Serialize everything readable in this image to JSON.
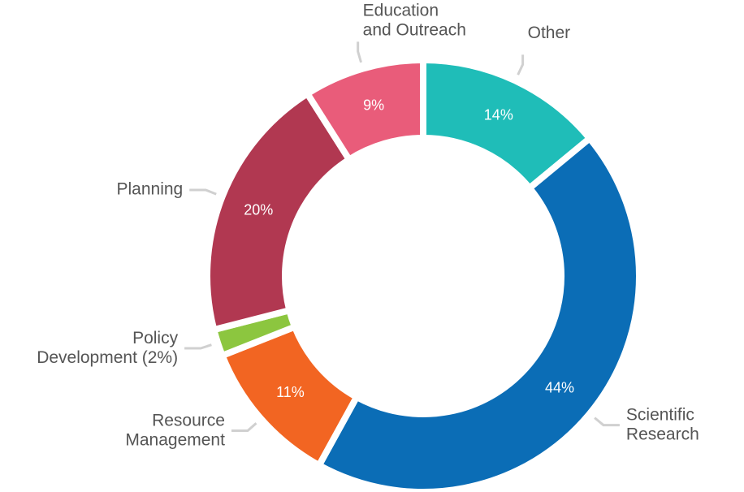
{
  "chart_data": {
    "type": "donut",
    "categories": [
      "Other",
      "Scientific\nResearch",
      "Resource\nManagement",
      "Policy\nDevelopment (2%)",
      "Planning",
      "Education\nand Outreach"
    ],
    "values": [
      14,
      44,
      11,
      2,
      20,
      9
    ],
    "value_labels": [
      "14%",
      "44%",
      "11%",
      null,
      "20%",
      "9%"
    ],
    "colors": [
      "#1fbdb8",
      "#0b6db6",
      "#f26522",
      "#8cc63f",
      "#b13851",
      "#e95c7a"
    ]
  }
}
